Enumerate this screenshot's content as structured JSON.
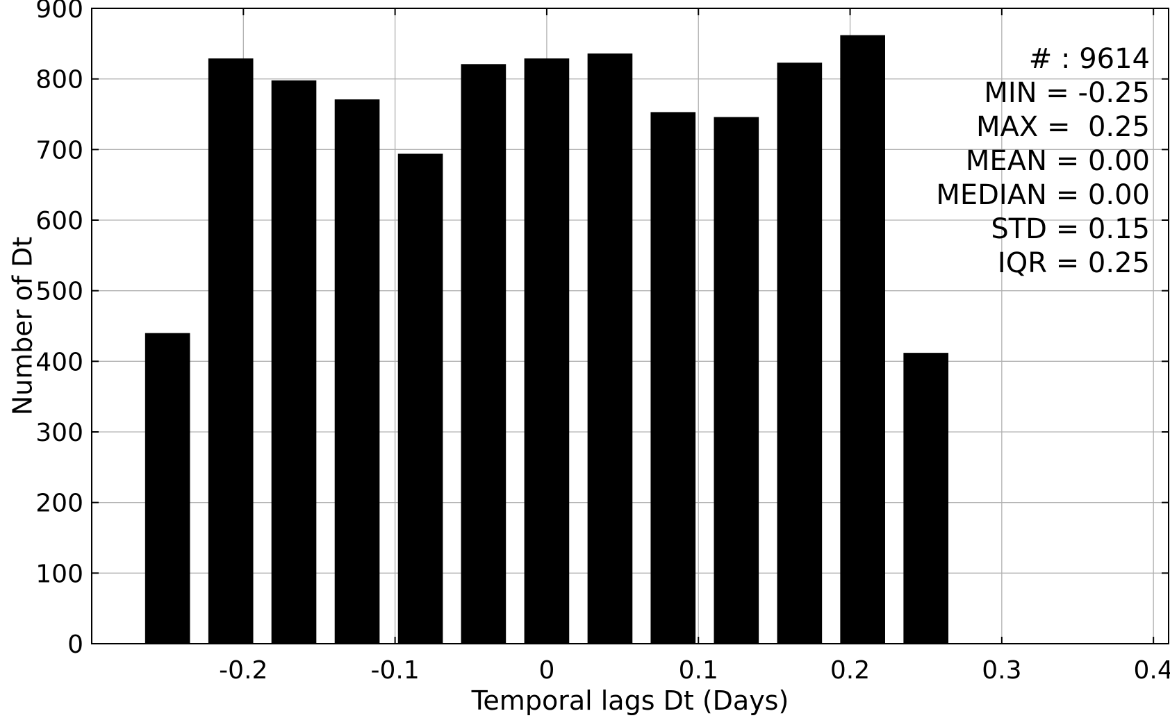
{
  "chart_data": {
    "type": "bar",
    "title": "",
    "xlabel": "Temporal lags Dt (Days)",
    "ylabel": "Number of Dt",
    "bar_color": "#000000",
    "grid": true,
    "bins": [
      {
        "x": -0.25,
        "count": 440
      },
      {
        "x": -0.2083,
        "count": 829
      },
      {
        "x": -0.1667,
        "count": 798
      },
      {
        "x": -0.125,
        "count": 771
      },
      {
        "x": -0.0833,
        "count": 694
      },
      {
        "x": -0.0417,
        "count": 821
      },
      {
        "x": 0.0,
        "count": 829
      },
      {
        "x": 0.0417,
        "count": 836
      },
      {
        "x": 0.0833,
        "count": 753
      },
      {
        "x": 0.125,
        "count": 746
      },
      {
        "x": 0.1667,
        "count": 823
      },
      {
        "x": 0.2083,
        "count": 862
      },
      {
        "x": 0.25,
        "count": 412
      }
    ],
    "xlim": [
      -0.3,
      0.41
    ],
    "ylim": [
      0,
      900
    ],
    "xticks": [
      -0.2,
      -0.1,
      0,
      0.1,
      0.2,
      0.3,
      0.4
    ],
    "xtick_labels": [
      "-0.2",
      "-0.1",
      "0",
      "0.1",
      "0.2",
      "0.3",
      "0.4"
    ],
    "yticks": [
      0,
      100,
      200,
      300,
      400,
      500,
      600,
      700,
      800,
      900
    ],
    "ytick_labels": [
      "0",
      "100",
      "200",
      "300",
      "400",
      "500",
      "600",
      "700",
      "800",
      "900"
    ],
    "stats_placement": "top-right",
    "stats": [
      "# : 9614",
      "MIN = -0.25",
      "MAX =  0.25",
      "MEAN = 0.00",
      "MEDIAN = 0.00",
      "STD = 0.15",
      "IQR = 0.25"
    ]
  }
}
